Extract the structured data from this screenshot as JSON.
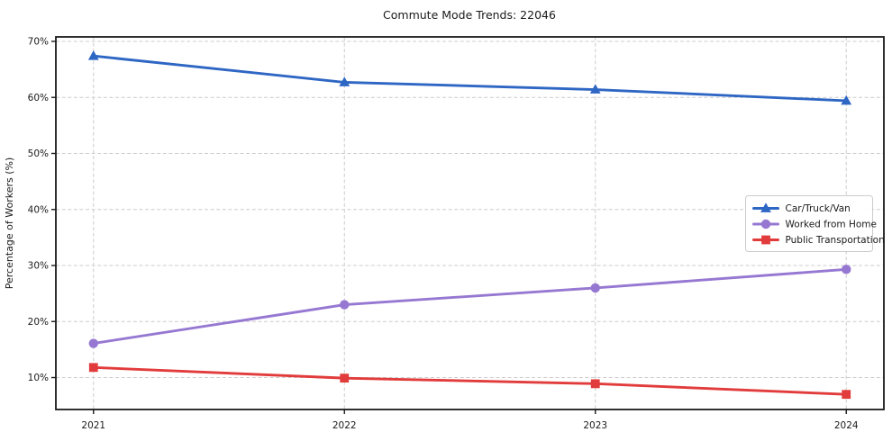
{
  "figure": {
    "background_color": "#ffffff",
    "text_color": "#1a1a1a",
    "grid_color": "#cccccc",
    "spine_color": "#1a1a1a",
    "legend_border_color": "#cccccc"
  },
  "chart_data": {
    "type": "line",
    "title": "Commute Mode Trends: 22046",
    "xlabel": "",
    "ylabel": "Percentage of Workers (%)",
    "x": [
      2021,
      2022,
      2023,
      2024
    ],
    "xtick_labels": [
      "2021",
      "2022",
      "2023",
      "2024"
    ],
    "ytick_values": [
      10,
      20,
      30,
      40,
      50,
      60,
      70
    ],
    "ytick_labels": [
      "10%",
      "20%",
      "30%",
      "40%",
      "50%",
      "60%",
      "70%"
    ],
    "xlim": [
      2020.85,
      2024.15
    ],
    "ylim": [
      4.3,
      70.8
    ],
    "grid": true,
    "grid_style": "dashed",
    "legend_position": "center right",
    "series": [
      {
        "name": "Car/Truck/Van",
        "color": "#2e66c4",
        "marker": "triangle",
        "values": [
          67.4,
          62.7,
          61.4,
          59.4
        ]
      },
      {
        "name": "Worked from Home",
        "color": "#9678d2",
        "marker": "circle",
        "values": [
          16.1,
          23.0,
          26.0,
          29.3
        ]
      },
      {
        "name": "Public Transportation",
        "color": "#e23b3b",
        "marker": "square",
        "values": [
          11.8,
          9.9,
          8.9,
          7.0
        ]
      }
    ]
  }
}
